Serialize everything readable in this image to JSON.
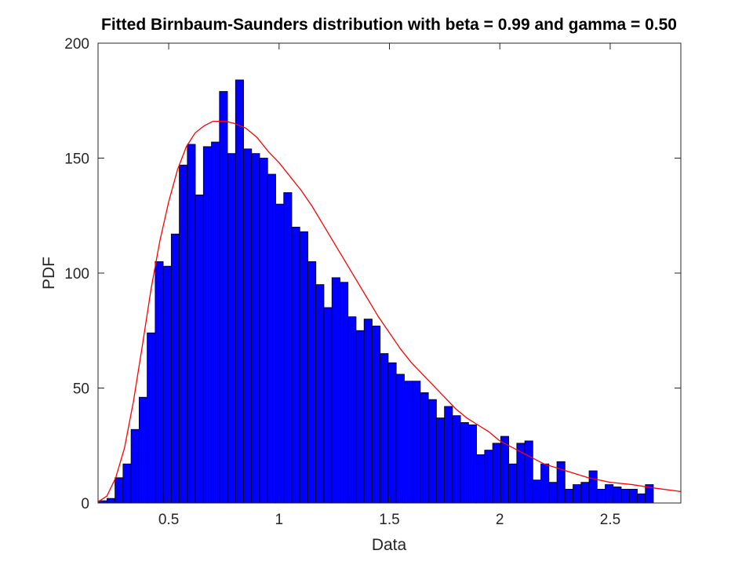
{
  "chart_data": {
    "type": "bar",
    "title": "Fitted Birnbaum-Saunders distribution with beta = 0.99 and gamma = 0.50",
    "xlabel": "Data",
    "ylabel": "PDF",
    "xlim": [
      0.18,
      2.82
    ],
    "ylim": [
      0,
      200
    ],
    "xticks": [
      0.5,
      1,
      1.5,
      2,
      2.5
    ],
    "xtick_labels": [
      "0.5",
      "1",
      "1.5",
      "2",
      "2.5"
    ],
    "yticks": [
      0,
      50,
      100,
      150,
      200
    ],
    "ytick_labels": [
      "0",
      "50",
      "100",
      "150",
      "200"
    ],
    "grid": false,
    "bar_color": "#0000ff",
    "fit_color": "#ff0000",
    "bin_start": 0.184,
    "bin_width": 0.0364,
    "values": [
      1,
      2,
      11,
      17,
      32,
      46,
      74,
      105,
      103,
      117,
      147,
      156,
      134,
      155,
      157,
      179,
      152,
      184,
      154,
      152,
      150,
      143,
      130,
      135,
      120,
      118,
      105,
      95,
      85,
      98,
      96,
      81,
      75,
      80,
      77,
      65,
      61,
      56,
      53,
      53,
      48,
      45,
      37,
      42,
      38,
      35,
      34,
      21,
      23,
      26,
      29,
      17,
      26,
      27,
      10,
      17,
      9,
      18,
      6,
      8,
      9,
      14,
      6,
      8,
      7,
      6,
      6,
      4,
      8
    ],
    "fit_curve": {
      "x": [
        0.18,
        0.22,
        0.26,
        0.3,
        0.34,
        0.38,
        0.42,
        0.46,
        0.5,
        0.54,
        0.58,
        0.62,
        0.66,
        0.7,
        0.74,
        0.76,
        0.8,
        0.85,
        0.9,
        0.95,
        1.0,
        1.05,
        1.1,
        1.15,
        1.2,
        1.25,
        1.3,
        1.35,
        1.4,
        1.45,
        1.5,
        1.55,
        1.6,
        1.65,
        1.7,
        1.75,
        1.8,
        1.85,
        1.9,
        1.95,
        2.0,
        2.1,
        2.2,
        2.3,
        2.4,
        2.5,
        2.6,
        2.7,
        2.82
      ],
      "y": [
        0.5,
        3,
        11,
        24,
        44,
        68,
        93,
        114,
        131,
        145,
        155,
        161,
        164,
        166,
        166,
        166,
        165,
        163,
        159,
        153,
        148,
        142,
        136,
        129,
        121,
        113,
        105,
        97,
        89,
        81,
        74,
        67,
        61,
        56,
        51,
        46,
        41,
        37,
        34,
        31,
        27,
        22,
        17,
        14,
        11,
        9,
        8,
        6.5,
        5
      ]
    }
  }
}
